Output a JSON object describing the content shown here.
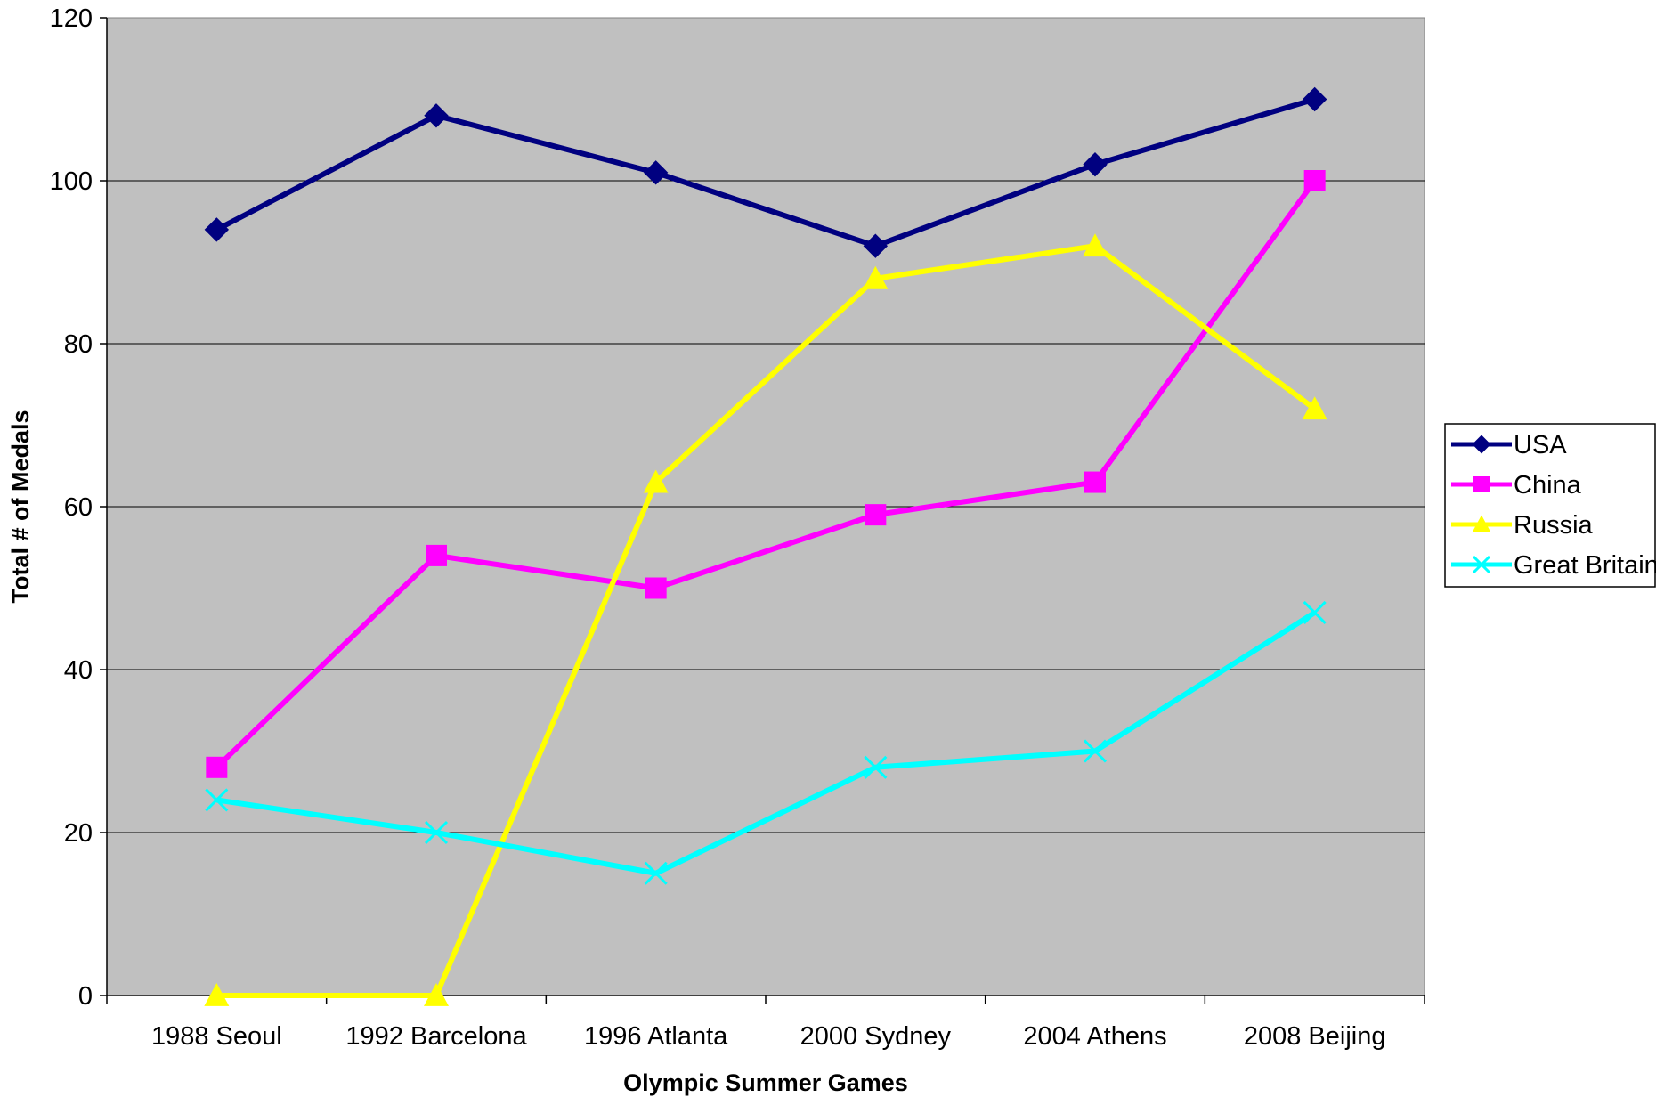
{
  "chart_data": {
    "type": "line",
    "title": "",
    "xlabel": "Olympic Summer Games",
    "ylabel": "Total # of Medals",
    "categories": [
      "1988 Seoul",
      "1992 Barcelona",
      "1996 Atlanta",
      "2000 Sydney",
      "2004 Athens",
      "2008 Beijing"
    ],
    "ylim": [
      0,
      120
    ],
    "yticks": [
      0,
      20,
      40,
      60,
      80,
      100,
      120
    ],
    "grid": true,
    "legend_position": "right",
    "plot_background": "#c0c0c0",
    "series": [
      {
        "name": "USA",
        "values": [
          94,
          108,
          101,
          92,
          102,
          110
        ],
        "color": "#000080",
        "marker": "diamond"
      },
      {
        "name": "China",
        "values": [
          28,
          54,
          50,
          59,
          63,
          100
        ],
        "color": "#ff00ff",
        "marker": "square"
      },
      {
        "name": "Russia",
        "values": [
          0,
          0,
          63,
          88,
          92,
          72
        ],
        "color": "#ffff00",
        "marker": "triangle"
      },
      {
        "name": "Great Britain",
        "values": [
          24,
          20,
          15,
          28,
          30,
          47
        ],
        "color": "#00ffff",
        "marker": "x"
      }
    ]
  }
}
